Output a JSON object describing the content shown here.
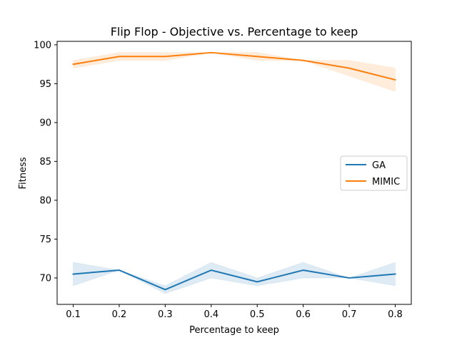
{
  "chart_data": {
    "type": "line",
    "title": "Flip Flop - Objective vs. Percentage to keep",
    "xlabel": "Percentage to keep",
    "ylabel": "Fitness",
    "x": [
      0.1,
      0.2,
      0.3,
      0.4,
      0.5,
      0.6,
      0.7,
      0.8
    ],
    "xticks": [
      "0.1",
      "0.2",
      "0.3",
      "0.4",
      "0.5",
      "0.6",
      "0.7",
      "0.8"
    ],
    "yticks": [
      "70",
      "75",
      "80",
      "85",
      "90",
      "95",
      "100"
    ],
    "xlim": [
      0.065,
      0.835
    ],
    "ylim": [
      66.6,
      100.45
    ],
    "grid": false,
    "legend_position": "center-right",
    "series": [
      {
        "name": "GA",
        "color": "#1f77b4",
        "values": [
          70.5,
          71.0,
          68.5,
          71.0,
          69.5,
          71.0,
          70.0,
          70.5
        ],
        "lower": [
          69.0,
          71.0,
          68.0,
          70.0,
          69.0,
          70.0,
          70.0,
          69.0
        ],
        "upper": [
          72.0,
          71.0,
          69.0,
          72.0,
          70.0,
          72.0,
          70.0,
          72.0
        ]
      },
      {
        "name": "MIMIC",
        "color": "#ff7f0e",
        "values": [
          97.5,
          98.5,
          98.5,
          99.0,
          98.5,
          98.0,
          97.0,
          95.5
        ],
        "lower": [
          97.0,
          98.0,
          98.0,
          99.0,
          98.0,
          98.0,
          96.0,
          94.0
        ],
        "upper": [
          98.0,
          99.0,
          99.0,
          99.0,
          99.0,
          98.0,
          98.0,
          97.0
        ]
      }
    ]
  }
}
